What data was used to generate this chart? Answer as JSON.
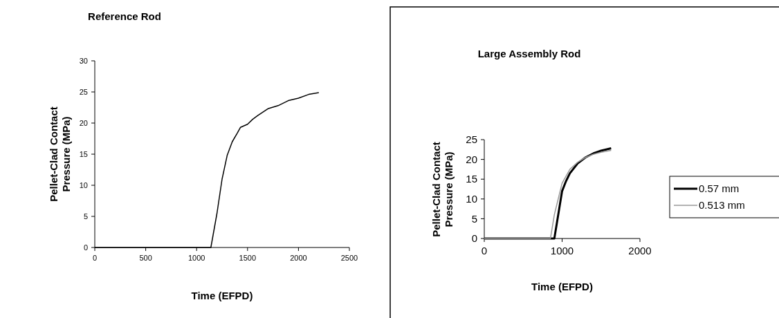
{
  "chart_data": [
    {
      "type": "line",
      "title": "Reference Rod",
      "xlabel": "Time (EFPD)",
      "ylabel": "Pellet-Clad Contact\nPressure (MPa)",
      "xlim": [
        0,
        2500
      ],
      "xticks": [
        0,
        500,
        1000,
        1500,
        2000,
        2500
      ],
      "ylim": [
        0,
        30
      ],
      "yticks": [
        0,
        5,
        10,
        15,
        20,
        25,
        30
      ],
      "grid": false,
      "legend": false,
      "series": [
        {
          "color": "#000000",
          "x": [
            0,
            500,
            1000,
            1140,
            1200,
            1250,
            1300,
            1350,
            1400,
            1430,
            1500,
            1550,
            1600,
            1700,
            1800,
            1900,
            2000,
            2100,
            2200
          ],
          "values": [
            0,
            0,
            0,
            0,
            5.5,
            11,
            14.8,
            17,
            18.4,
            19.3,
            19.8,
            20.6,
            21.2,
            22.3,
            22.8,
            23.6,
            24,
            24.6,
            24.9
          ]
        }
      ]
    },
    {
      "type": "line",
      "title": "Large Assembly Rod",
      "xlabel": "Time (EFPD)",
      "ylabel": "Pellet-Clad Contact\nPressure (MPa)",
      "xlim": [
        0,
        2000
      ],
      "xticks": [
        0,
        1000,
        2000
      ],
      "ylim": [
        0,
        25
      ],
      "yticks": [
        0,
        5,
        10,
        15,
        20,
        25
      ],
      "grid": false,
      "legend": "right",
      "series": [
        {
          "name": "0.57 mm",
          "color": "#000000",
          "x": [
            0,
            500,
            900,
            950,
            1000,
            1050,
            1100,
            1200,
            1300,
            1400,
            1500,
            1630
          ],
          "values": [
            0,
            0,
            0,
            6,
            12,
            14.5,
            16.5,
            19,
            20.5,
            21.5,
            22.2,
            22.8
          ]
        },
        {
          "name": "0.513 mm",
          "color": "#999999",
          "x": [
            0,
            500,
            850,
            900,
            950,
            1000,
            1100,
            1200,
            1300,
            1400,
            1500,
            1630
          ],
          "values": [
            0,
            0,
            0,
            6,
            10,
            14,
            17.5,
            19.3,
            20.5,
            21.3,
            21.8,
            22.3
          ]
        }
      ]
    }
  ]
}
